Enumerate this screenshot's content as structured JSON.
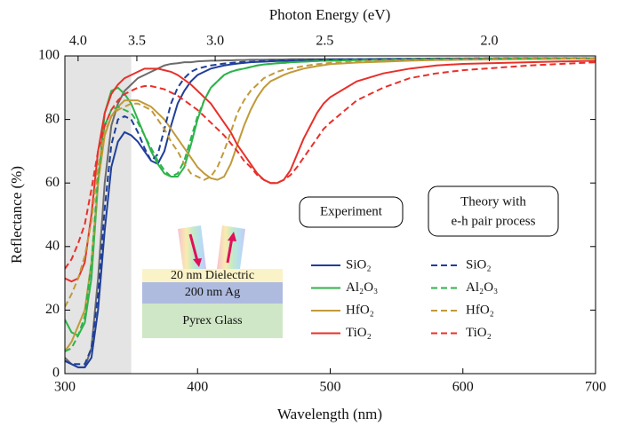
{
  "chart_data": {
    "type": "line",
    "xlabel": "Wavelength (nm)",
    "ylabel": "Reflectance (%)",
    "x2label": "Photon Energy (eV)",
    "x": [
      300,
      305,
      310,
      315,
      320,
      325,
      330,
      335,
      340,
      345,
      350,
      355,
      360,
      365,
      370,
      375,
      380,
      385,
      390,
      395,
      400,
      405,
      410,
      415,
      420,
      425,
      430,
      435,
      440,
      445,
      450,
      455,
      460,
      465,
      470,
      475,
      480,
      485,
      490,
      495,
      500,
      520,
      540,
      560,
      580,
      600,
      650,
      700
    ],
    "xlim": [
      300,
      700
    ],
    "ylim": [
      0,
      100
    ],
    "xticks": [
      300,
      400,
      500,
      600,
      700
    ],
    "yticks": [
      0,
      20,
      40,
      60,
      80,
      100
    ],
    "x2ticks": [
      {
        "value": 4,
        "label": "4.0"
      },
      {
        "value": 3.5,
        "label": "3.5"
      },
      {
        "value": 3,
        "label": "3.0"
      },
      {
        "value": 2.5,
        "label": "2.5"
      },
      {
        "value": 2,
        "label": "2.0"
      }
    ],
    "highlight": {
      "xlim": [
        300,
        350
      ],
      "color": "#e3e4e3"
    },
    "legend_titles": [
      [
        "Experiment"
      ],
      [
        "Theory with",
        "e-h pair process"
      ]
    ],
    "series": [
      {
        "color": "#6b6b6b",
        "style": "solid",
        "values": [
          5,
          3,
          2,
          2,
          8,
          30,
          60,
          78,
          85,
          89,
          91,
          93,
          94,
          95,
          96,
          97,
          97.5,
          97.7,
          98,
          98,
          98.3,
          98.4,
          98.5,
          98.5,
          98.6,
          98.6,
          98.7,
          98.7,
          98.8,
          98.8,
          98.8,
          98.9,
          98.9,
          98.9,
          99,
          99,
          99,
          99,
          99,
          99,
          99,
          99,
          99.1,
          99.1,
          99.2,
          99.2,
          99.3,
          99.3
        ]
      },
      {
        "name": "SiO₂",
        "color": "#1f3f9a",
        "style": "solid",
        "values": [
          4,
          3,
          2,
          2,
          5,
          20,
          45,
          65,
          73,
          76,
          75,
          73,
          70,
          67,
          66,
          70,
          78,
          85,
          89,
          92,
          94,
          95,
          96,
          96.5,
          97,
          97.3,
          97.6,
          97.8,
          98,
          98.1,
          98.2,
          98.3,
          98.4,
          98.4,
          98.5,
          98.5,
          98.6,
          98.6,
          98.7,
          98.7,
          98.8,
          98.9,
          99,
          99,
          99.1,
          99.1,
          99.2,
          99.3
        ]
      },
      {
        "name": "Al₂O₃",
        "color": "#2fb34a",
        "style": "solid",
        "values": [
          17,
          13,
          12,
          16,
          30,
          60,
          82,
          89,
          90,
          88,
          85,
          80,
          75,
          70,
          66,
          63,
          62,
          62,
          65,
          72,
          80,
          86,
          90,
          92,
          94,
          95,
          95.6,
          96,
          96.5,
          97,
          97.3,
          97.5,
          97.7,
          97.8,
          98,
          98.1,
          98.2,
          98.3,
          98.4,
          98.5,
          98.5,
          98.7,
          98.8,
          98.9,
          99,
          99,
          99.2,
          99.3
        ]
      },
      {
        "name": "HfO₂",
        "color": "#c19a3a",
        "style": "solid",
        "values": [
          7,
          10,
          15,
          20,
          35,
          60,
          75,
          81,
          84,
          86,
          86,
          86,
          85,
          84,
          82,
          80,
          77,
          74,
          71,
          68,
          65,
          63,
          61.5,
          61,
          62,
          66,
          72,
          78,
          83,
          87,
          90,
          92,
          93,
          94,
          94.8,
          95.4,
          96,
          96.4,
          96.8,
          97.1,
          97.4,
          97.9,
          98.2,
          98.5,
          98.7,
          98.8,
          99,
          99.2
        ]
      },
      {
        "name": "TiO₂",
        "color": "#e8302a",
        "style": "solid",
        "values": [
          30,
          29,
          30,
          35,
          50,
          70,
          82,
          88,
          91,
          93,
          94,
          95,
          96,
          96,
          96,
          95.5,
          95,
          94,
          92.5,
          91,
          89,
          87,
          85,
          82,
          79,
          76,
          72,
          69,
          66,
          63,
          61,
          60,
          60,
          61,
          64,
          69,
          74,
          78,
          82,
          85,
          87,
          92,
          94.5,
          96,
          97,
          97.5,
          98,
          98.5
        ]
      },
      {
        "name": "SiO₂",
        "color": "#1f3f9a",
        "style": "dashed",
        "values": [
          4,
          3,
          3,
          3,
          8,
          25,
          52,
          72,
          80,
          81,
          80,
          76,
          71,
          67,
          69,
          77,
          85,
          90,
          93,
          95,
          96,
          96.5,
          97,
          97.3,
          97.6,
          97.8,
          98,
          98.1,
          98.2,
          98.3,
          98.4,
          98.5,
          98.5,
          98.6,
          98.6,
          98.7,
          98.7,
          98.8,
          98.8,
          98.9,
          98.9,
          99,
          99,
          99.1,
          99.1,
          99.2,
          99.3,
          99.3
        ]
      },
      {
        "name": "Al₂O₃",
        "color": "#2fb34a",
        "style": "dashed",
        "values": [
          7,
          8,
          12,
          18,
          35,
          62,
          78,
          83,
          84,
          83,
          82,
          79,
          75,
          71,
          67,
          64,
          62,
          63,
          67,
          74,
          81,
          86,
          90,
          92,
          94,
          95,
          95.6,
          96,
          96.5,
          97,
          97.3,
          97.5,
          97.7,
          97.8,
          98,
          98.1,
          98.2,
          98.3,
          98.4,
          98.5,
          98.5,
          98.7,
          98.8,
          98.9,
          99,
          99,
          99.2,
          99.3
        ]
      },
      {
        "name": "HfO₂",
        "color": "#c19a3a",
        "style": "dashed",
        "values": [
          21,
          25,
          30,
          37,
          48,
          65,
          76,
          81,
          83,
          84,
          85,
          85,
          84,
          83,
          80,
          77,
          73,
          70,
          66,
          63,
          62,
          61,
          62,
          65,
          70,
          76,
          82,
          86,
          89,
          91,
          93,
          94,
          95,
          95.6,
          96,
          96.4,
          96.8,
          97.1,
          97.4,
          97.6,
          97.8,
          98.2,
          98.5,
          98.7,
          98.8,
          99,
          99.1,
          99.2
        ]
      },
      {
        "name": "TiO₂",
        "color": "#e8302a",
        "style": "dashed",
        "values": [
          33,
          36,
          41,
          47,
          58,
          70,
          78,
          83,
          86,
          88,
          89,
          90,
          90.5,
          90.5,
          90,
          89.5,
          88.5,
          87.5,
          86,
          84.5,
          83,
          81,
          79,
          77,
          75,
          72.5,
          70,
          67,
          65,
          62.5,
          61,
          60,
          60,
          61,
          62.5,
          65,
          68,
          71,
          74,
          77,
          79,
          86,
          90,
          93,
          94.5,
          95.5,
          97,
          98
        ]
      }
    ],
    "inset": {
      "layers": [
        "20 nm Dielectric",
        "200 nm Ag",
        "Pyrex Glass"
      ]
    }
  }
}
